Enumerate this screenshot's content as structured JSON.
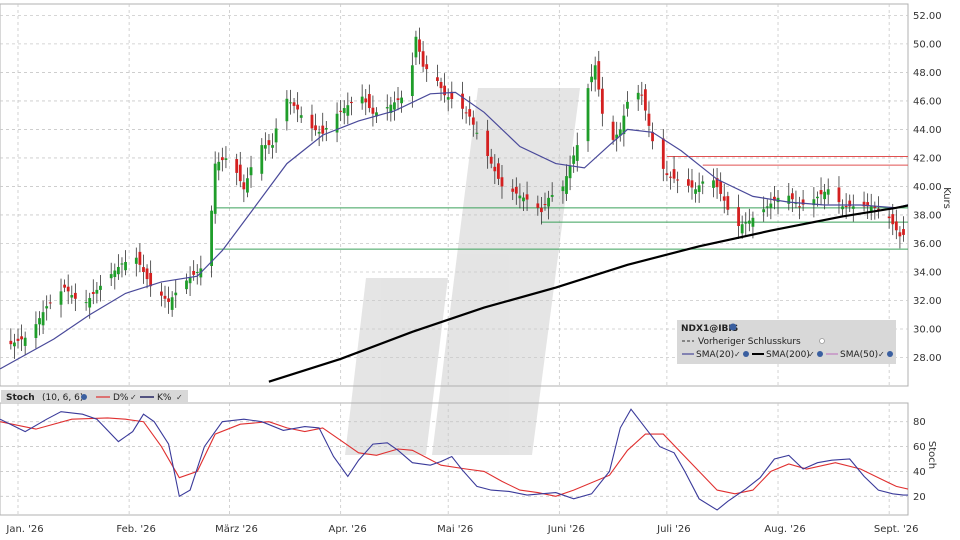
{
  "colors": {
    "up": "#1f9d2a",
    "down": "#d42020",
    "sma20": "#4a4a9a",
    "sma200": "#000000",
    "sma50": "#c080c0",
    "k": "#3a3a9a",
    "d": "#e03030",
    "support": "#3aa05a",
    "resistance": "#e05050",
    "grid": "#c8c8c8",
    "legendBg": "#d8d8d8"
  },
  "chart_data": [
    {
      "type": "candlestick",
      "title": "",
      "ylabel": "Kurs",
      "xlabel": "",
      "ylim": [
        26,
        52.8
      ],
      "yticks": [
        "52.00",
        "50.00",
        "48.00",
        "46.00",
        "44.00",
        "42.00",
        "40.00",
        "38.00",
        "36.00",
        "34.00",
        "32.00",
        "30.00",
        "28.00"
      ],
      "x_labels": [
        "Jan. '26",
        "Feb. '26",
        "März '26",
        "Apr. '26",
        "Mai '26",
        "Juni '26",
        "Juli '26",
        "Aug. '26",
        "Sept. '26"
      ],
      "x_label_days": [
        0,
        31,
        59,
        90,
        120,
        151,
        181,
        212,
        243
      ],
      "legend": {
        "symbol": "NDX1@IBIS",
        "prev_close": "Vorheriger Schlusskurs",
        "sma20": "SMA(20)",
        "sma200": "SMA(200)",
        "sma50": "SMA(50)"
      },
      "price_path": [
        [
          -5,
          28.6
        ],
        [
          3,
          29.5
        ],
        [
          8,
          31.6
        ],
        [
          13,
          32.9
        ],
        [
          18,
          31.6
        ],
        [
          25,
          33.6
        ],
        [
          29,
          34.6
        ],
        [
          33,
          35.0
        ],
        [
          37,
          33.0
        ],
        [
          42,
          31.9
        ],
        [
          46,
          33.2
        ],
        [
          50,
          34.0
        ],
        [
          52,
          34.5
        ],
        [
          54,
          38.3
        ],
        [
          55,
          41.6
        ],
        [
          59,
          42.1
        ],
        [
          63,
          39.8
        ],
        [
          67,
          42.9
        ],
        [
          71,
          42.9
        ],
        [
          74,
          46.4
        ],
        [
          78,
          45.4
        ],
        [
          81,
          44.2
        ],
        [
          85,
          43.7
        ],
        [
          88,
          44.9
        ],
        [
          92,
          45.7
        ],
        [
          96,
          46.3
        ],
        [
          99,
          45.1
        ],
        [
          102,
          45.4
        ],
        [
          105,
          45.9
        ],
        [
          108,
          46.4
        ],
        [
          110,
          48.5
        ],
        [
          111,
          50.5
        ],
        [
          113,
          48.4
        ],
        [
          116,
          47.9
        ],
        [
          119,
          46.4
        ],
        [
          122,
          46.0
        ],
        [
          126,
          44.9
        ],
        [
          129,
          43.2
        ],
        [
          132,
          41.6
        ],
        [
          135,
          40.0
        ],
        [
          139,
          39.5
        ],
        [
          144,
          38.8
        ],
        [
          146,
          38.2
        ],
        [
          148,
          39.2
        ],
        [
          152,
          40.0
        ],
        [
          156,
          42.9
        ],
        [
          159,
          46.9
        ],
        [
          161,
          48.5
        ],
        [
          163,
          45.1
        ],
        [
          165,
          42.9
        ],
        [
          168,
          44.0
        ],
        [
          171,
          46.9
        ],
        [
          174,
          46.4
        ],
        [
          178,
          42.1
        ],
        [
          181,
          40.8
        ],
        [
          185,
          40.3
        ],
        [
          189,
          39.8
        ],
        [
          193,
          40.9
        ],
        [
          197,
          39.0
        ],
        [
          200,
          37.1
        ],
        [
          204,
          37.6
        ],
        [
          209,
          38.6
        ],
        [
          214,
          39.6
        ],
        [
          218,
          38.6
        ],
        [
          222,
          39.1
        ],
        [
          226,
          39.8
        ],
        [
          230,
          38.6
        ],
        [
          234,
          38.6
        ],
        [
          238,
          38.6
        ],
        [
          242,
          38.2
        ],
        [
          246,
          36.5
        ],
        [
          249,
          36.8
        ],
        [
          250,
          37.1
        ],
        [
          251,
          41.0
        ]
      ],
      "sma20_path": [
        [
          -5,
          27.2
        ],
        [
          10,
          29.3
        ],
        [
          20,
          31.0
        ],
        [
          30,
          32.5
        ],
        [
          40,
          33.3
        ],
        [
          50,
          33.7
        ],
        [
          57,
          35.5
        ],
        [
          65,
          38.2
        ],
        [
          75,
          41.6
        ],
        [
          85,
          43.6
        ],
        [
          95,
          44.6
        ],
        [
          105,
          45.3
        ],
        [
          115,
          46.5
        ],
        [
          122,
          46.6
        ],
        [
          130,
          45.2
        ],
        [
          140,
          42.8
        ],
        [
          150,
          41.6
        ],
        [
          158,
          41.3
        ],
        [
          165,
          42.9
        ],
        [
          170,
          44.0
        ],
        [
          177,
          43.8
        ],
        [
          185,
          42.5
        ],
        [
          195,
          40.5
        ],
        [
          205,
          39.3
        ],
        [
          215,
          38.9
        ],
        [
          225,
          38.7
        ],
        [
          235,
          38.7
        ],
        [
          245,
          38.5
        ],
        [
          251,
          38.9
        ]
      ],
      "sma200_path": [
        [
          70,
          26.3
        ],
        [
          90,
          27.9
        ],
        [
          110,
          29.8
        ],
        [
          130,
          31.5
        ],
        [
          150,
          32.9
        ],
        [
          170,
          34.5
        ],
        [
          190,
          35.8
        ],
        [
          210,
          36.9
        ],
        [
          230,
          37.9
        ],
        [
          245,
          38.5
        ],
        [
          251,
          38.8
        ]
      ],
      "support_levels": [
        {
          "y": 38.5,
          "x1": 55
        },
        {
          "y": 37.5,
          "x1": 146
        },
        {
          "y": 35.6,
          "x1": 55
        }
      ],
      "resistance_levels": [
        {
          "y": 42.1,
          "x1": 181
        },
        {
          "y": 41.5,
          "x1": 191
        }
      ]
    },
    {
      "type": "line",
      "title": "Stoch",
      "params": "(10, 6, 6)",
      "ylabel": "Stoch",
      "ylim": [
        5,
        95
      ],
      "yticks": [
        "80",
        "60",
        "40",
        "20"
      ],
      "series": [
        {
          "name": "D%",
          "key": "d",
          "path": [
            [
              -5,
              80
            ],
            [
              5,
              74
            ],
            [
              15,
              82
            ],
            [
              25,
              83
            ],
            [
              30,
              82
            ],
            [
              35,
              80
            ],
            [
              40,
              60
            ],
            [
              45,
              35
            ],
            [
              50,
              40
            ],
            [
              55,
              70
            ],
            [
              62,
              78
            ],
            [
              70,
              80
            ],
            [
              75,
              75
            ],
            [
              80,
              72
            ],
            [
              85,
              75
            ],
            [
              90,
              65
            ],
            [
              95,
              55
            ],
            [
              100,
              53
            ],
            [
              106,
              58
            ],
            [
              110,
              57
            ],
            [
              118,
              45
            ],
            [
              125,
              42
            ],
            [
              130,
              40
            ],
            [
              135,
              32
            ],
            [
              140,
              25
            ],
            [
              145,
              23
            ],
            [
              150,
              20
            ],
            [
              155,
              25
            ],
            [
              165,
              37
            ],
            [
              170,
              57
            ],
            [
              175,
              70
            ],
            [
              180,
              70
            ],
            [
              185,
              55
            ],
            [
              190,
              40
            ],
            [
              195,
              25
            ],
            [
              200,
              22
            ],
            [
              205,
              25
            ],
            [
              210,
              40
            ],
            [
              215,
              46
            ],
            [
              220,
              42
            ],
            [
              228,
              47
            ],
            [
              235,
              42
            ],
            [
              240,
              35
            ],
            [
              245,
              28
            ],
            [
              251,
              24
            ]
          ]
        },
        {
          "name": "K%",
          "key": "k",
          "path": [
            [
              -5,
              82
            ],
            [
              2,
              72
            ],
            [
              8,
              82
            ],
            [
              12,
              88
            ],
            [
              18,
              86
            ],
            [
              22,
              82
            ],
            [
              28,
              64
            ],
            [
              32,
              72
            ],
            [
              35,
              86
            ],
            [
              38,
              80
            ],
            [
              42,
              62
            ],
            [
              45,
              20
            ],
            [
              48,
              25
            ],
            [
              52,
              60
            ],
            [
              57,
              80
            ],
            [
              63,
              82
            ],
            [
              68,
              80
            ],
            [
              74,
              73
            ],
            [
              80,
              76
            ],
            [
              84,
              75
            ],
            [
              88,
              52
            ],
            [
              92,
              36
            ],
            [
              95,
              49
            ],
            [
              99,
              62
            ],
            [
              103,
              63
            ],
            [
              106,
              57
            ],
            [
              110,
              47
            ],
            [
              115,
              45
            ],
            [
              118,
              48
            ],
            [
              121,
              52
            ],
            [
              124,
              41
            ],
            [
              128,
              28
            ],
            [
              132,
              25
            ],
            [
              137,
              24
            ],
            [
              142,
              21
            ],
            [
              146,
              22
            ],
            [
              150,
              23
            ],
            [
              155,
              18
            ],
            [
              160,
              22
            ],
            [
              165,
              40
            ],
            [
              168,
              75
            ],
            [
              171,
              90
            ],
            [
              175,
              75
            ],
            [
              179,
              60
            ],
            [
              183,
              55
            ],
            [
              186,
              40
            ],
            [
              190,
              18
            ],
            [
              195,
              9
            ],
            [
              198,
              16
            ],
            [
              203,
              26
            ],
            [
              207,
              35
            ],
            [
              211,
              50
            ],
            [
              215,
              53
            ],
            [
              219,
              42
            ],
            [
              223,
              47
            ],
            [
              227,
              49
            ],
            [
              232,
              50
            ],
            [
              236,
              36
            ],
            [
              240,
              25
            ],
            [
              244,
              22
            ],
            [
              247,
              21
            ],
            [
              250,
              21
            ],
            [
              251,
              32
            ]
          ]
        }
      ]
    }
  ]
}
